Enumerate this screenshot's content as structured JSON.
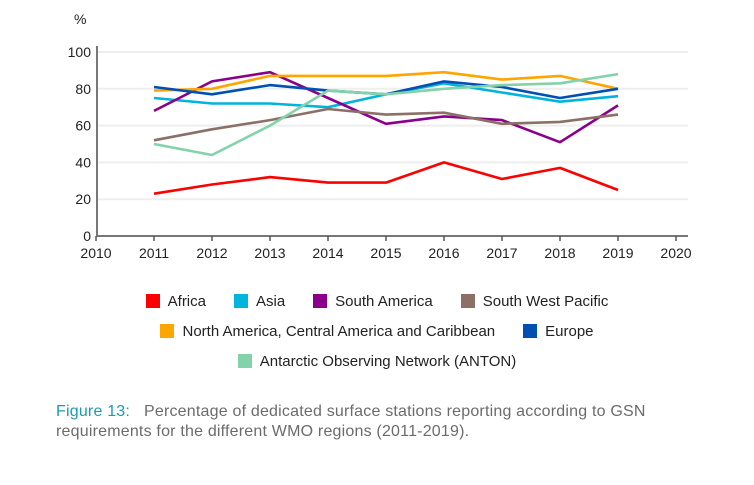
{
  "chart_data": {
    "type": "line",
    "title": "",
    "ylabel": "%",
    "xlabel": "",
    "xlim": [
      2010,
      2020
    ],
    "ylim": [
      0,
      100
    ],
    "x_ticks": [
      "2010",
      "2011",
      "2012",
      "2013",
      "2014",
      "2015",
      "2016",
      "2017",
      "2018",
      "2019",
      "2020"
    ],
    "y_ticks": [
      "0",
      "20",
      "40",
      "60",
      "80",
      "100"
    ],
    "grid": "horizontal",
    "legend_position": "bottom",
    "x": [
      2011,
      2012,
      2013,
      2014,
      2015,
      2016,
      2017,
      2018,
      2019
    ],
    "series": [
      {
        "name": "Africa",
        "color": "#ff0000",
        "values": [
          23,
          28,
          32,
          29,
          29,
          40,
          31,
          37,
          25
        ]
      },
      {
        "name": "Asia",
        "color": "#00b4dc",
        "values": [
          75,
          72,
          72,
          70,
          77,
          83,
          78,
          73,
          76
        ]
      },
      {
        "name": "South America",
        "color": "#8b008b",
        "values": [
          68,
          84,
          89,
          75,
          61,
          65,
          63,
          51,
          71
        ]
      },
      {
        "name": "South West Pacific",
        "color": "#8c7068",
        "values": [
          52,
          58,
          63,
          69,
          66,
          67,
          61,
          62,
          66
        ]
      },
      {
        "name": "North America, Central America and Caribbean",
        "color": "#ffa500",
        "values": [
          79,
          80,
          87,
          87,
          87,
          89,
          85,
          87,
          80
        ]
      },
      {
        "name": "Europe",
        "color": "#0050b4",
        "values": [
          81,
          77,
          82,
          79,
          77,
          84,
          81,
          75,
          80
        ]
      },
      {
        "name": "Antarctic Observing Network (ANTON)",
        "color": "#82d2aa",
        "values": [
          50,
          44,
          60,
          79,
          77,
          80,
          82,
          83,
          88
        ]
      }
    ]
  },
  "legend_rows": [
    [
      0,
      1,
      2,
      3
    ],
    [
      4,
      5
    ],
    [
      6
    ]
  ],
  "caption": {
    "label": "Figure 13:",
    "text": "Percentage of dedicated surface stations reporting according to GSN requirements for the different WMO regions (2011-2019)."
  }
}
